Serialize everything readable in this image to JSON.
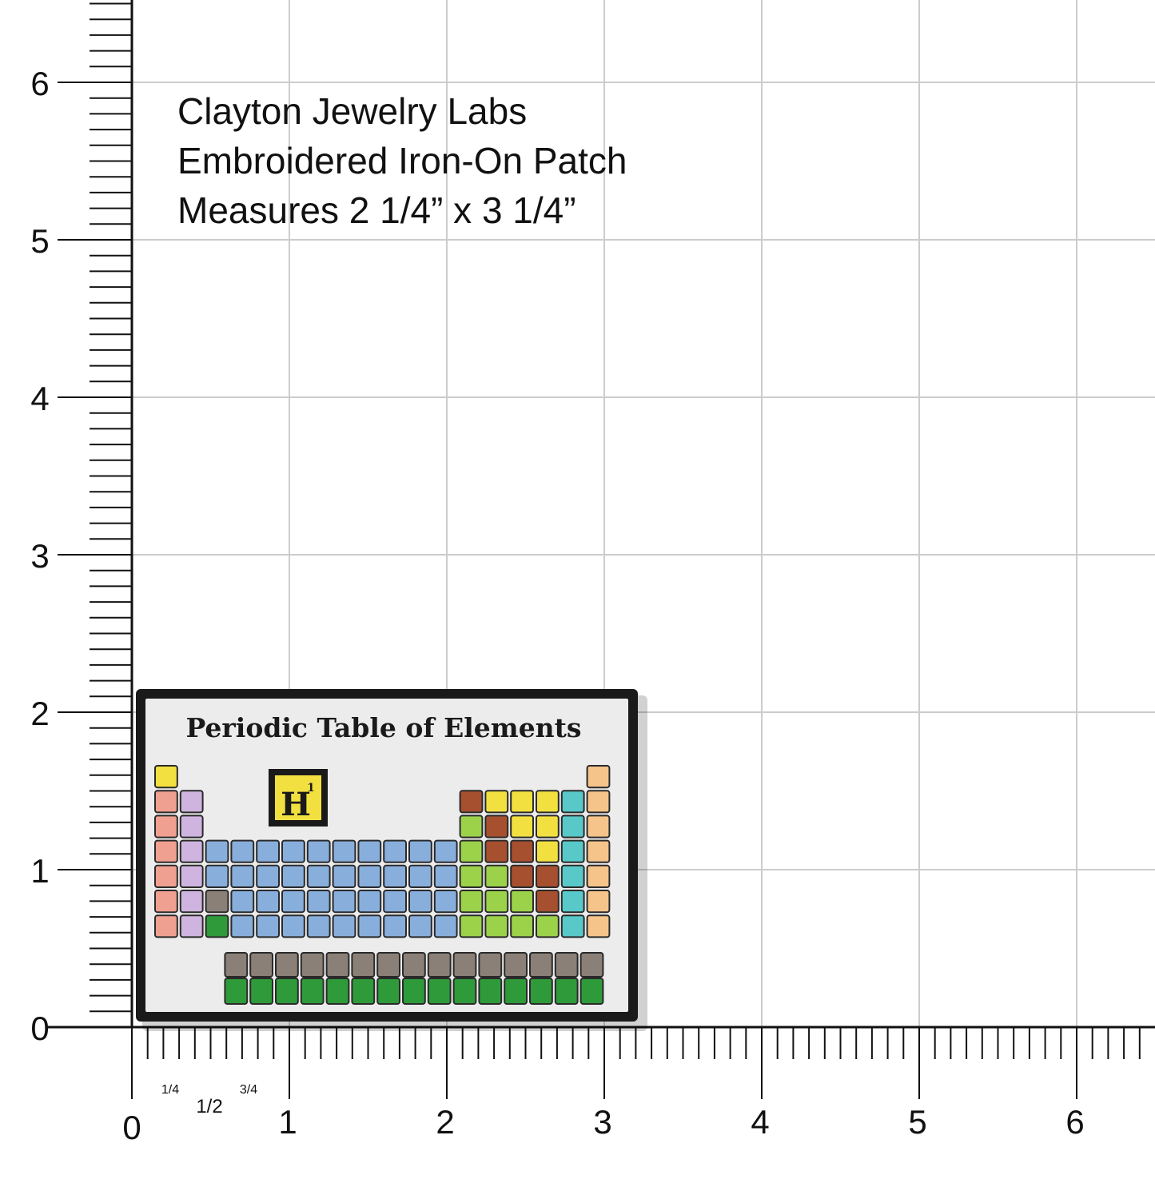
{
  "caption": {
    "brand": "Clayton Jewelry Labs",
    "product": "Embroidered Iron-On Patch",
    "size": "Measures 2 1/4” x 3 1/4”"
  },
  "ruler": {
    "y_labels": [
      "0",
      "1",
      "2",
      "3",
      "4",
      "5",
      "6"
    ],
    "x_labels": [
      "0",
      "1",
      "2",
      "3",
      "4",
      "5",
      "6"
    ],
    "x_fractions": [
      "1/4",
      "1/2",
      "3/4"
    ]
  },
  "patch": {
    "title": "Periodic Table of Elements",
    "featured_symbol": "H",
    "featured_number": "1"
  },
  "colors": {
    "alkali": "#f0a090",
    "alkaline": "#d0b4e0",
    "transition": "#88aedc",
    "metalloid": "#9cd24a",
    "nonmetal": "#f2e040",
    "brown": "#a65030",
    "halogen": "#58c8c8",
    "noble": "#f4c48a",
    "lanthanide": "#8a8078",
    "actinide": "#2e9a3a",
    "grid": "#cccccc",
    "border": "#1a1a1a"
  }
}
